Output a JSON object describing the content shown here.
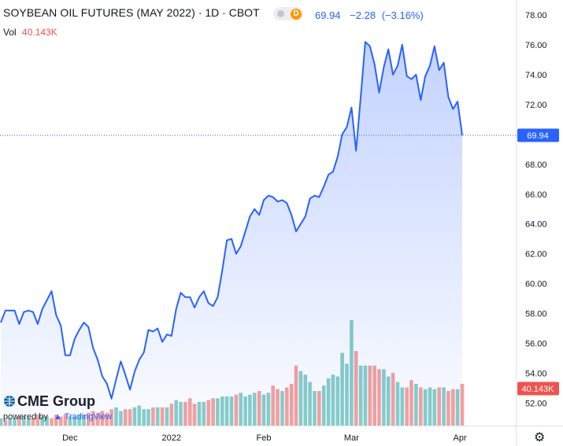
{
  "header": {
    "title": "SOYBEAN OIL FUTURES (MAY 2022)",
    "interval": "1D",
    "exchange": "CBOT",
    "badge": "D",
    "last": "69.94",
    "change": "−2.28",
    "change_pct": "(−3.16%)"
  },
  "volume_legend": {
    "label": "Vol",
    "value": "40.143K"
  },
  "price_label": "69.94",
  "volume_label": "40.143K",
  "logo": {
    "name": "CME Group",
    "powered_by": "powered by",
    "brand": "TradingView"
  },
  "colors": {
    "line": "#2962ff",
    "area_top": "#2962ff",
    "vol_up": "#26a69a",
    "vol_down": "#ef5350",
    "price_label_bg": "#2962ff",
    "volume_label_bg": "#ef5350"
  },
  "chart_data": {
    "type": "area",
    "title": "SOYBEAN OIL FUTURES (MAY 2022)",
    "ylim": [
      50.5,
      79.0
    ],
    "y_ticks": [
      "52.00",
      "54.00",
      "56.00",
      "58.00",
      "60.00",
      "62.00",
      "64.00",
      "66.00",
      "68.00",
      "70.00",
      "72.00",
      "74.00",
      "76.00",
      "78.00"
    ],
    "x_ticks": [
      "Dec",
      "2022",
      "Feb",
      "Mar",
      "Apr"
    ],
    "x_tick_index": [
      15,
      37,
      57,
      76,
      99.5
    ],
    "x_range": [
      0,
      105
    ],
    "last_price": 69.94,
    "grid": false,
    "series": [
      {
        "values": [
          57.4,
          58.2,
          58.2,
          58.2,
          57.3,
          58.1,
          58.2,
          58.1,
          57.3,
          58.3,
          58.9,
          59.5,
          57.9,
          57.2,
          55.2,
          55.2,
          56.3,
          56.9,
          57.4,
          57.1,
          55.7,
          54.9,
          53.8,
          53.3,
          52.3,
          53.6,
          54.8,
          53.9,
          52.9,
          54.1,
          54.9,
          55.4,
          56.9,
          56.8,
          57.0,
          56.1,
          56.6,
          56.5,
          58.3,
          59.4,
          59.1,
          59.1,
          58.4,
          59.1,
          59.5,
          58.7,
          58.5,
          59.1,
          60.9,
          62.9,
          63.0,
          62.0,
          62.5,
          63.5,
          64.5,
          65.0,
          64.6,
          65.6,
          65.9,
          65.8,
          65.5,
          65.6,
          65.4,
          64.6,
          63.5,
          64.0,
          64.5,
          65.7,
          65.9,
          65.8,
          66.5,
          67.3,
          67.5,
          68.5,
          70.0,
          70.5,
          71.8,
          68.9,
          72.5,
          76.2,
          75.9,
          74.7,
          72.8,
          74.5,
          75.7,
          74.0,
          74.6,
          76.0,
          73.9,
          73.7,
          74.0,
          72.3,
          73.9,
          74.6,
          75.9,
          74.3,
          74.8,
          72.5,
          71.7,
          72.2,
          69.94
        ]
      }
    ],
    "volume": {
      "values": [
        0.4,
        0.3,
        0.4,
        0.4,
        0.5,
        0.5,
        0.4,
        0.4,
        0.6,
        0.5,
        0.5,
        0.4,
        0.6,
        0.5,
        0.6,
        0.5,
        0.5,
        0.6,
        0.6,
        0.7,
        0.8,
        0.7,
        0.8,
        0.7,
        0.9,
        1.0,
        0.8,
        0.9,
        0.9,
        1.0,
        1.1,
        0.9,
        0.9,
        1.0,
        1.0,
        1.0,
        1.0,
        1.2,
        1.4,
        1.3,
        1.3,
        1.5,
        1.2,
        1.3,
        1.3,
        1.4,
        1.5,
        1.5,
        1.6,
        1.6,
        1.6,
        1.7,
        1.8,
        1.6,
        1.7,
        1.8,
        1.9,
        1.7,
        1.8,
        2.2,
        2.0,
        1.9,
        2.1,
        2.3,
        3.3,
        3.0,
        2.8,
        2.4,
        1.9,
        1.9,
        2.2,
        2.6,
        2.8,
        2.7,
        4.0,
        3.4,
        5.8,
        4.1,
        3.3,
        3.3,
        3.3,
        3.3,
        3.1,
        3.1,
        2.7,
        2.9,
        2.4,
        2.1,
        2.1,
        2.5,
        2.3,
        2.1,
        2.0,
        2.1,
        2.0,
        2.1,
        2.1,
        1.9,
        2.0,
        2.0,
        2.3
      ],
      "up": [
        1,
        0,
        1,
        1,
        0,
        1,
        1,
        0,
        0,
        1,
        1,
        0,
        0,
        0,
        0,
        1,
        1,
        1,
        1,
        0,
        0,
        0,
        0,
        0,
        0,
        1,
        1,
        0,
        0,
        1,
        1,
        1,
        1,
        0,
        1,
        0,
        1,
        0,
        1,
        1,
        0,
        0,
        0,
        1,
        1,
        0,
        0,
        1,
        1,
        1,
        1,
        0,
        1,
        1,
        1,
        1,
        0,
        1,
        1,
        0,
        0,
        1,
        0,
        0,
        0,
        1,
        1,
        1,
        1,
        0,
        1,
        1,
        1,
        1,
        1,
        1,
        1,
        0,
        1,
        1,
        0,
        0,
        0,
        1,
        1,
        0,
        1,
        1,
        0,
        0,
        1,
        0,
        1,
        1,
        1,
        0,
        1,
        0,
        0,
        1,
        0
      ]
    }
  }
}
